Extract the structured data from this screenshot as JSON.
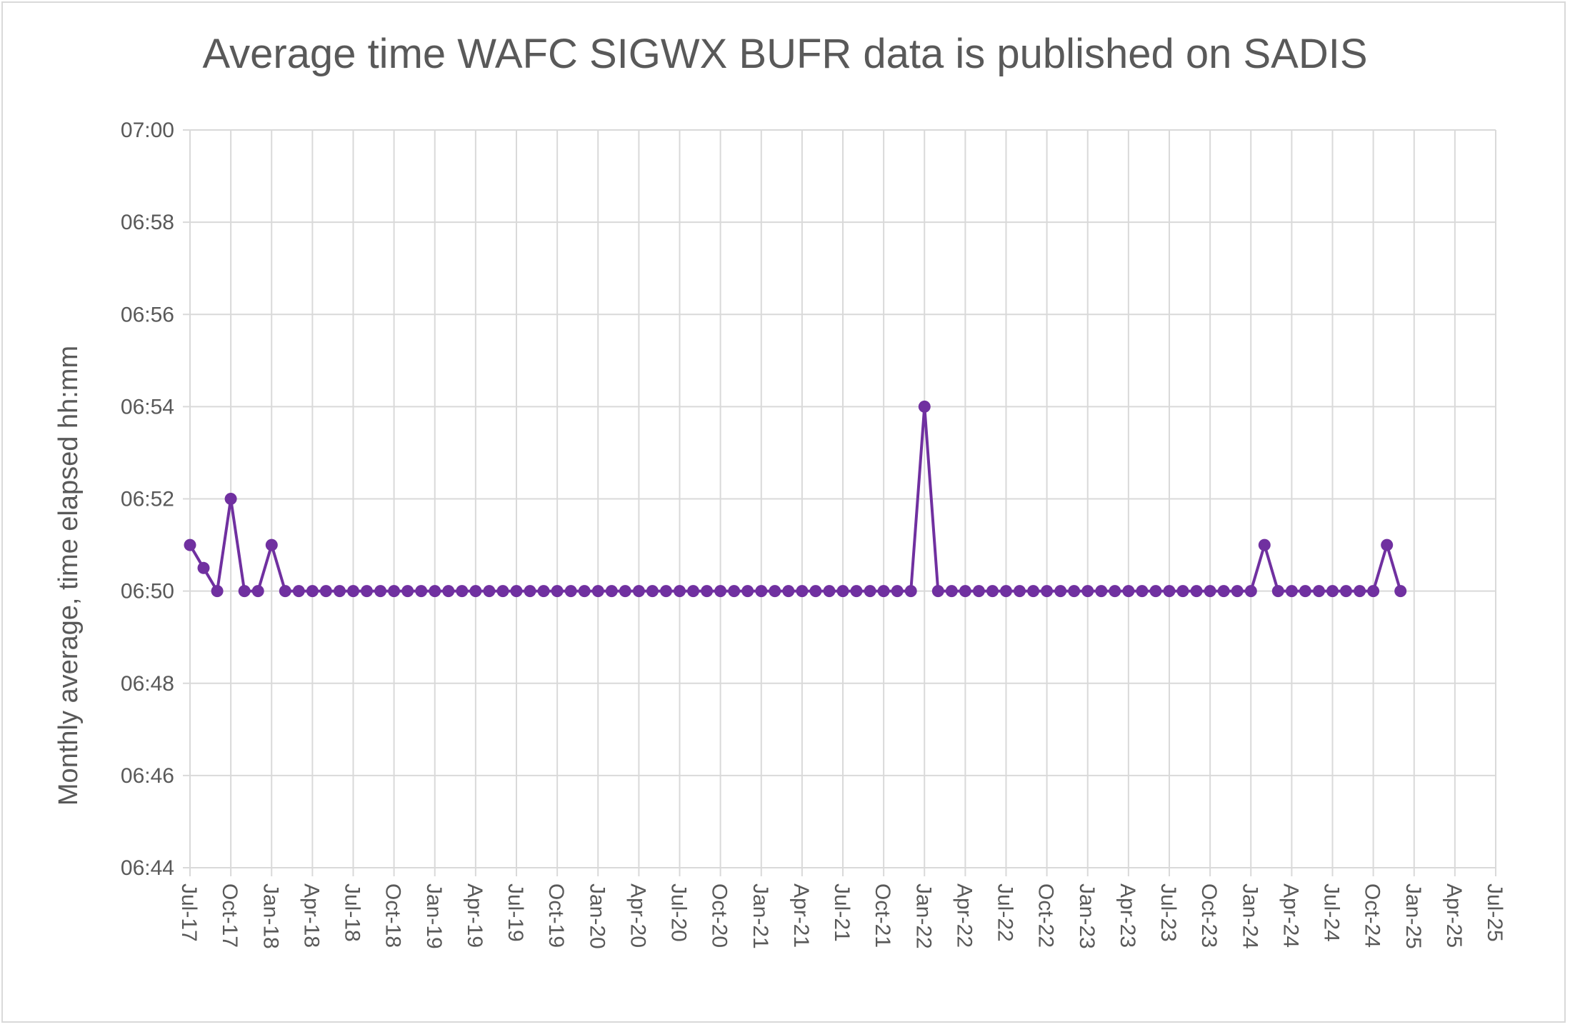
{
  "chart_data": {
    "type": "line",
    "title": "Average time WAFC SIGWX BUFR data is published on SADIS",
    "xlabel": "",
    "ylabel": "Monthly average, time elapsed  hh:mm",
    "series_color": "#7030a0",
    "grid_color": "#d9d9d9",
    "grid": true,
    "legend": "none",
    "x_range": [
      "2017-07",
      "2025-07"
    ],
    "x_tick_labels": [
      "Jul-17",
      "Oct-17",
      "Jan-18",
      "Apr-18",
      "Jul-18",
      "Oct-18",
      "Jan-19",
      "Apr-19",
      "Jul-19",
      "Oct-19",
      "Jan-20",
      "Apr-20",
      "Jul-20",
      "Oct-20",
      "Jan-21",
      "Apr-21",
      "Jul-21",
      "Oct-21",
      "Jan-22",
      "Apr-22",
      "Jul-22",
      "Oct-22",
      "Jan-23",
      "Apr-23",
      "Jul-23",
      "Oct-23",
      "Jan-24",
      "Apr-24",
      "Jul-24",
      "Oct-24",
      "Jan-25",
      "Apr-25",
      "Jul-25"
    ],
    "y_range": [
      "06:44",
      "07:00"
    ],
    "y_tick_labels": [
      "06:44",
      "06:46",
      "06:48",
      "06:50",
      "06:52",
      "06:54",
      "06:56",
      "06:58",
      "07:00"
    ],
    "series": [
      {
        "x": [
          "2017-07",
          "2017-08",
          "2017-09",
          "2017-10",
          "2017-11",
          "2017-12",
          "2018-01",
          "2018-02",
          "2018-03",
          "2018-04",
          "2018-05",
          "2018-06",
          "2018-07",
          "2018-08",
          "2018-09",
          "2018-10",
          "2018-11",
          "2018-12",
          "2019-01",
          "2019-02",
          "2019-03",
          "2019-04",
          "2019-05",
          "2019-06",
          "2019-07",
          "2019-08",
          "2019-09",
          "2019-10",
          "2019-11",
          "2019-12",
          "2020-01",
          "2020-02",
          "2020-03",
          "2020-04",
          "2020-05",
          "2020-06",
          "2020-07",
          "2020-08",
          "2020-09",
          "2020-10",
          "2020-11",
          "2020-12",
          "2021-01",
          "2021-02",
          "2021-03",
          "2021-04",
          "2021-05",
          "2021-06",
          "2021-07",
          "2021-08",
          "2021-09",
          "2021-10",
          "2021-11",
          "2021-12",
          "2022-01",
          "2022-02",
          "2022-03",
          "2022-04",
          "2022-05",
          "2022-06",
          "2022-07",
          "2022-08",
          "2022-09",
          "2022-10",
          "2022-11",
          "2022-12",
          "2023-01",
          "2023-02",
          "2023-03",
          "2023-04",
          "2023-05",
          "2023-06",
          "2023-07",
          "2023-08",
          "2023-09",
          "2023-10",
          "2023-11",
          "2023-12",
          "2024-01",
          "2024-02",
          "2024-03",
          "2024-04",
          "2024-05",
          "2024-06",
          "2024-07",
          "2024-08",
          "2024-09",
          "2024-10",
          "2024-11",
          "2024-12"
        ],
        "y": [
          "06:51",
          "06:50:30",
          "06:50",
          "06:52",
          "06:50",
          "06:50",
          "06:51",
          "06:50",
          "06:50",
          "06:50",
          "06:50",
          "06:50",
          "06:50",
          "06:50",
          "06:50",
          "06:50",
          "06:50",
          "06:50",
          "06:50",
          "06:50",
          "06:50",
          "06:50",
          "06:50",
          "06:50",
          "06:50",
          "06:50",
          "06:50",
          "06:50",
          "06:50",
          "06:50",
          "06:50",
          "06:50",
          "06:50",
          "06:50",
          "06:50",
          "06:50",
          "06:50",
          "06:50",
          "06:50",
          "06:50",
          "06:50",
          "06:50",
          "06:50",
          "06:50",
          "06:50",
          "06:50",
          "06:50",
          "06:50",
          "06:50",
          "06:50",
          "06:50",
          "06:50",
          "06:50",
          "06:50",
          "06:54",
          "06:50",
          "06:50",
          "06:50",
          "06:50",
          "06:50",
          "06:50",
          "06:50",
          "06:50",
          "06:50",
          "06:50",
          "06:50",
          "06:50",
          "06:50",
          "06:50",
          "06:50",
          "06:50",
          "06:50",
          "06:50",
          "06:50",
          "06:50",
          "06:50",
          "06:50",
          "06:50",
          "06:50",
          "06:51",
          "06:50",
          "06:50",
          "06:50",
          "06:50",
          "06:50",
          "06:50",
          "06:50",
          "06:50",
          "06:51",
          "06:50"
        ]
      }
    ]
  }
}
